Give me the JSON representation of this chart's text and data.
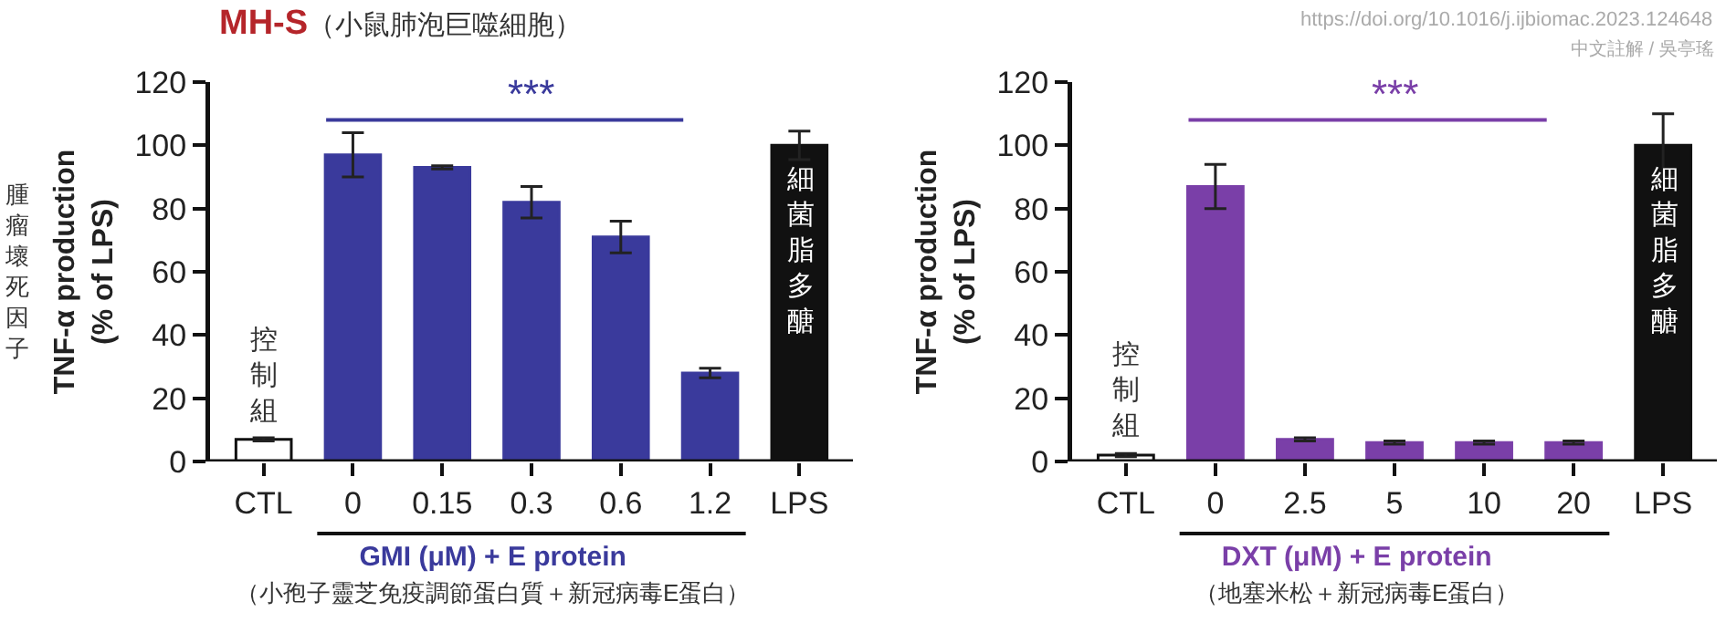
{
  "chart_data": [
    {
      "type": "bar",
      "title": "MH-S",
      "subtitle": "（小鼠肺泡巨噬細胞）",
      "xlabel": "GMI (μM) + E protein\n（小孢子靈芝免疫調節蛋白質＋新冠病毒E蛋白）",
      "ylabel": "TNF-α production (% of LPS)",
      "categories": [
        "CTL",
        "0",
        "0.15",
        "0.3",
        "0.6",
        "1.2",
        "LPS"
      ],
      "values": [
        7,
        97,
        93,
        82,
        71,
        28,
        100
      ],
      "errors": [
        0.5,
        7,
        0.5,
        5,
        5,
        1.5,
        4.5
      ],
      "colors": [
        "#ffffff",
        "#3a3a9c",
        "#3a3a9c",
        "#3a3a9c",
        "#3a3a9c",
        "#3a3a9c",
        "#111111"
      ],
      "ylim": [
        0,
        120
      ],
      "yticks": [
        0,
        20,
        40,
        60,
        80,
        100,
        120
      ],
      "annotations": [
        "***",
        "腫瘤壞死因子",
        {
          "text": "控制組",
          "x": "CTL",
          "y": 10
        },
        {
          "text": "細菌脂多醣",
          "x": "LPS",
          "y": 95
        }
      ]
    },
    {
      "type": "bar",
      "xlabel": "DXT (μM) + E protein\n（地塞米松＋新冠病毒E蛋白）",
      "ylabel": "TNF-α production (% of LPS)",
      "categories": [
        "CTL",
        "0",
        "2.5",
        "5",
        "10",
        "20",
        "LPS"
      ],
      "values": [
        2,
        87,
        7,
        6,
        6,
        6,
        100
      ],
      "errors": [
        0.5,
        7,
        0.5,
        0.5,
        0.5,
        0.5,
        10
      ],
      "colors": [
        "#ffffff",
        "#7a3fa8",
        "#7a3fa8",
        "#7a3fa8",
        "#7a3fa8",
        "#7a3fa8",
        "#111111"
      ],
      "ylim": [
        0,
        120
      ],
      "yticks": [
        0,
        20,
        40,
        60,
        80,
        100,
        120
      ],
      "annotations": [
        "***",
        "https://doi.org/10.1016/j.ijbiomac.2023.124648",
        "中文註解 / 吳亭瑤",
        {
          "text": "控制組",
          "x": "CTL",
          "y": 5
        },
        {
          "text": "細菌脂多醣",
          "x": "LPS",
          "y": 95
        }
      ]
    }
  ]
}
